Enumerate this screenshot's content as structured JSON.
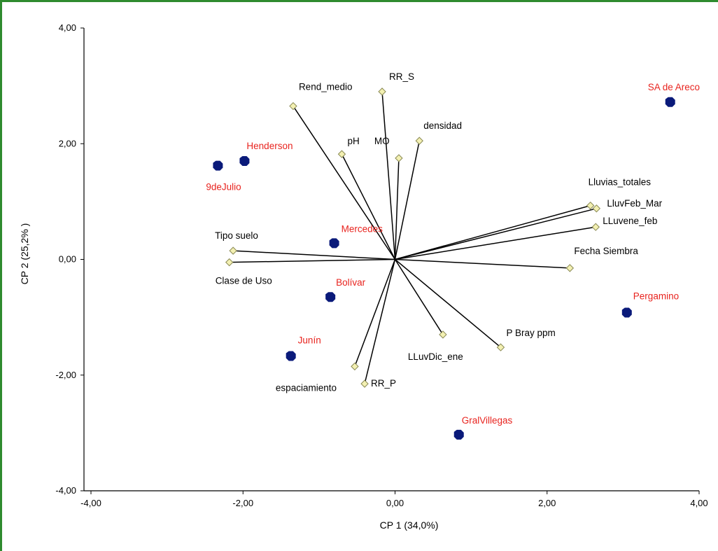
{
  "chart_data": {
    "type": "scatter",
    "subtype": "biplot",
    "title": "",
    "xlabel": "CP 1 (34,0%)",
    "ylabel": "CP 2  (25,2% )",
    "xlim": [
      -4,
      4
    ],
    "ylim": [
      -4,
      4
    ],
    "x_ticks": [
      -4,
      -2,
      0,
      2,
      4
    ],
    "x_tick_labels": [
      "-4,00",
      "-2,00",
      "0,00",
      "2,00",
      "4,00"
    ],
    "y_ticks": [
      4,
      2,
      0,
      -2,
      -4
    ],
    "y_tick_labels": [
      "4,00",
      "2,00",
      "0,00",
      "-2,00",
      "-4,00"
    ],
    "grid": false,
    "colors": {
      "frame": "#2e8b2e",
      "site_marker": "#0a1a7a",
      "site_label": "#e8231e",
      "vector_marker": "#f3f0b2",
      "vector_line": "#000000"
    },
    "series": [
      {
        "type": "sites",
        "points": [
          {
            "label": "SA de Areco",
            "x": 3.62,
            "y": 2.72
          },
          {
            "label": "Henderson",
            "x": -1.98,
            "y": 1.7
          },
          {
            "label": "9deJulio",
            "x": -2.33,
            "y": 1.62
          },
          {
            "label": "Mercedes",
            "x": -0.8,
            "y": 0.28
          },
          {
            "label": "Bolívar",
            "x": -0.85,
            "y": -0.65
          },
          {
            "label": "Junín",
            "x": -1.37,
            "y": -1.67
          },
          {
            "label": "Pergamino",
            "x": 3.05,
            "y": -0.92
          },
          {
            "label": "GralVillegas",
            "x": 0.84,
            "y": -3.03
          }
        ]
      },
      {
        "type": "variables",
        "points": [
          {
            "label": "RR_S",
            "x": -0.17,
            "y": 2.9
          },
          {
            "label": "Rend_medio",
            "x": -1.34,
            "y": 2.65
          },
          {
            "label": "densidad",
            "x": 0.32,
            "y": 2.05
          },
          {
            "label": "pH",
            "x": -0.7,
            "y": 1.82
          },
          {
            "label": "MO",
            "x": 0.05,
            "y": 1.75
          },
          {
            "label": "Lluvias_totales",
            "x": 2.57,
            "y": 0.93
          },
          {
            "label": "LluvFeb_Mar",
            "x": 2.65,
            "y": 0.88
          },
          {
            "label": "LLuvene_feb",
            "x": 2.64,
            "y": 0.56
          },
          {
            "label": "Fecha Siembra",
            "x": 2.3,
            "y": -0.15
          },
          {
            "label": "Tipo suelo",
            "x": -2.13,
            "y": 0.15
          },
          {
            "label": "Clase de Uso",
            "x": -2.18,
            "y": -0.05
          },
          {
            "label": "P Bray ppm",
            "x": 1.39,
            "y": -1.52
          },
          {
            "label": "LLuvDic_ene",
            "x": 0.63,
            "y": -1.3
          },
          {
            "label": "espaciamiento",
            "x": -0.53,
            "y": -1.85
          },
          {
            "label": "RR_P",
            "x": -0.4,
            "y": -2.15
          }
        ]
      }
    ]
  }
}
